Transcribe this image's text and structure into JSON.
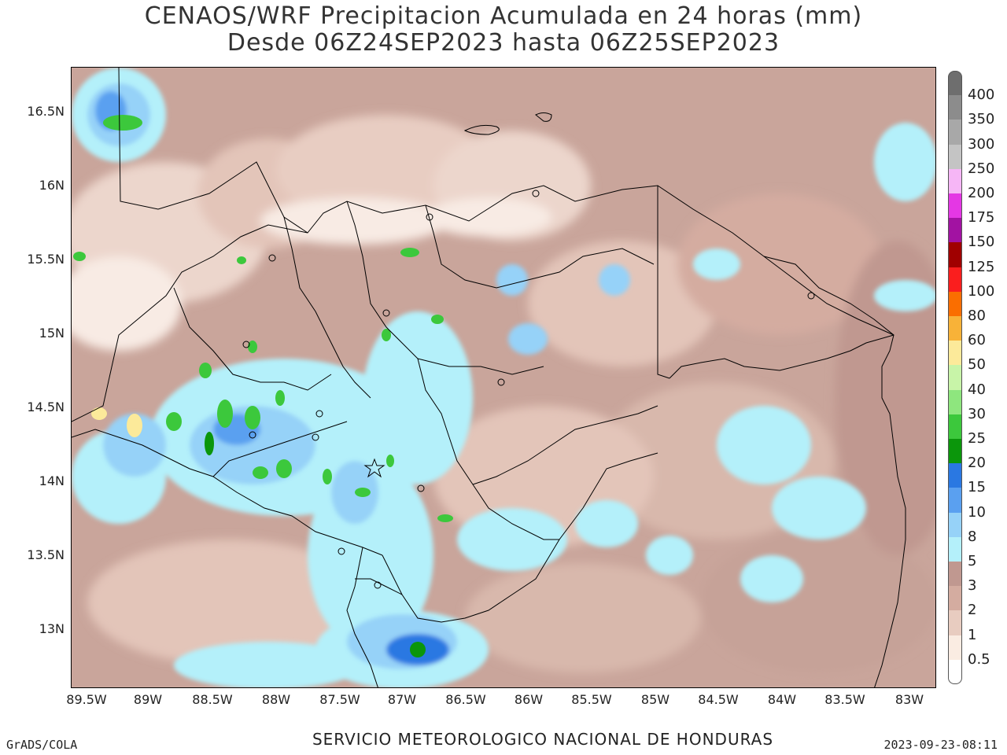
{
  "title_line1": "CENAOS/WRF Precipitacion Acumulada en 24 horas (mm)",
  "title_line2": "Desde 06Z24SEP2023 hasta 06Z25SEP2023",
  "lat_ticks": [
    "16.5N",
    "16N",
    "15.5N",
    "15N",
    "14.5N",
    "14N",
    "13.5N",
    "13N"
  ],
  "lon_ticks": [
    "89.5W",
    "89W",
    "88.5W",
    "88W",
    "87.5W",
    "87W",
    "86.5W",
    "86W",
    "85.5W",
    "85W",
    "84.5W",
    "84W",
    "83.5W",
    "83W"
  ],
  "footer": {
    "left": "GrADS/COLA",
    "center": "SERVICIO METEOROLOGICO NACIONAL DE HONDURAS",
    "right": "2023-09-23-08:11"
  },
  "colorbar": {
    "labels": [
      "400",
      "350",
      "300",
      "250",
      "200",
      "175",
      "150",
      "125",
      "100",
      "80",
      "60",
      "50",
      "40",
      "30",
      "25",
      "20",
      "15",
      "10",
      "8",
      "5",
      "3",
      "2",
      "1",
      "0.5"
    ],
    "colors": [
      "#6e6e6e",
      "#8c8c8c",
      "#a8a8a8",
      "#c4c4c4",
      "#f6b6f6",
      "#e437e4",
      "#a212a2",
      "#a00000",
      "#fa1e1e",
      "#fa6e00",
      "#f8b238",
      "#fcea9a",
      "#c8f4a8",
      "#8ee67e",
      "#3cc83c",
      "#0b960b",
      "#2a78e2",
      "#5aa0f0",
      "#96d2f8",
      "#b4f0fa",
      "#c09890",
      "#d4aca0",
      "#e8ccc0",
      "#faece2",
      "#ffffff"
    ]
  },
  "map_colors": {
    "ocean_base": "#c6a298",
    "dry": "#d8b8ac",
    "light": "#ecd6cc",
    "very_light": "#f8ebe4",
    "wet_light": "#b4f0fa",
    "wet": "#96d2f8",
    "wetter": "#5aa0f0",
    "wettest": "#2a78e2",
    "green": "#3cc83c",
    "dark_green": "#0b960b",
    "yellow": "#fcea9a"
  }
}
